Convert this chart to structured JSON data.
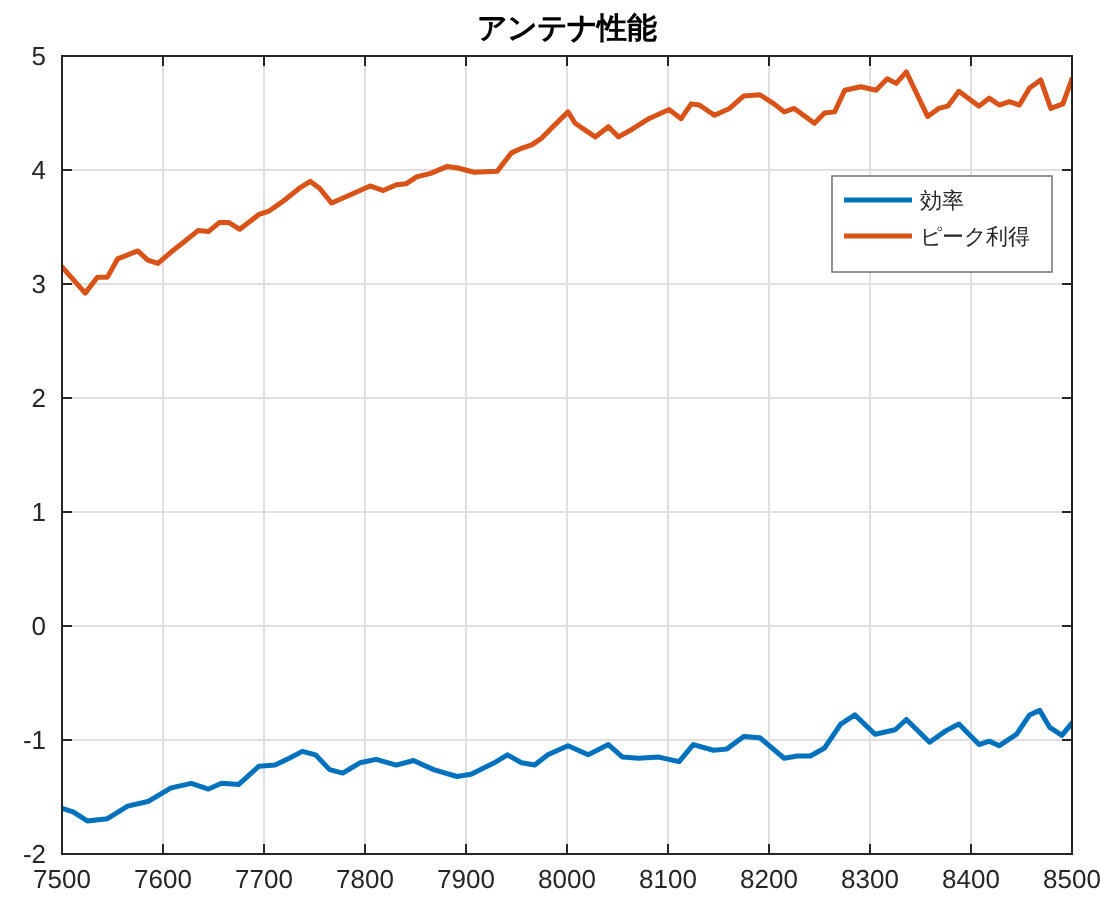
{
  "chart_data": {
    "type": "line",
    "title": "アンテナ性能",
    "xlim": [
      7500,
      8500
    ],
    "xticks": [
      7500,
      7600,
      7700,
      7800,
      7900,
      8000,
      8100,
      8200,
      8300,
      8400,
      8500
    ],
    "ylim": [
      -2,
      5
    ],
    "yticks": [
      -2,
      -1,
      0,
      1,
      2,
      3,
      4,
      5
    ],
    "grid": true,
    "legend": "right",
    "line_style": "solid",
    "marker": "none",
    "series": [
      {
        "name": "効率",
        "color": "#0072bd",
        "x": [
          7500,
          7511,
          7525,
          7545,
          7565,
          7585,
          7608,
          7628,
          7645,
          7658,
          7675,
          7695,
          7711,
          7725,
          7738,
          7751,
          7765,
          7778,
          7795,
          7811,
          7831,
          7848,
          7868,
          7891,
          7905,
          7928,
          7941,
          7955,
          7968,
          7981,
          8001,
          8021,
          8041,
          8055,
          8071,
          8091,
          8111,
          8125,
          8145,
          8158,
          8175,
          8191,
          8215,
          8228,
          8241,
          8255,
          8271,
          8285,
          8305,
          8325,
          8336,
          8359,
          8375,
          8388,
          8408,
          8418,
          8428,
          8445,
          8458,
          8468,
          8478,
          8490,
          8500
        ],
        "values": [
          -1.6,
          -1.63,
          -1.71,
          -1.69,
          -1.58,
          -1.54,
          -1.42,
          -1.38,
          -1.43,
          -1.38,
          -1.39,
          -1.23,
          -1.22,
          -1.16,
          -1.1,
          -1.13,
          -1.26,
          -1.29,
          -1.2,
          -1.17,
          -1.22,
          -1.18,
          -1.26,
          -1.32,
          -1.3,
          -1.2,
          -1.13,
          -1.2,
          -1.22,
          -1.13,
          -1.05,
          -1.13,
          -1.04,
          -1.15,
          -1.16,
          -1.15,
          -1.19,
          -1.04,
          -1.09,
          -1.08,
          -0.97,
          -0.98,
          -1.16,
          -1.14,
          -1.14,
          -1.07,
          -0.86,
          -0.78,
          -0.95,
          -0.91,
          -0.82,
          -1.02,
          -0.92,
          -0.86,
          -1.04,
          -1.01,
          -1.05,
          -0.95,
          -0.78,
          -0.74,
          -0.89,
          -0.96,
          -0.85
        ]
      },
      {
        "name": "ピーク利得",
        "color": "#d95319",
        "x": [
          7500,
          7523,
          7535,
          7545,
          7555,
          7575,
          7585,
          7595,
          7608,
          7621,
          7635,
          7645,
          7656,
          7665,
          7676,
          7695,
          7705,
          7718,
          7735,
          7746,
          7755,
          7767,
          7785,
          7805,
          7818,
          7831,
          7841,
          7851,
          7865,
          7881,
          7891,
          7908,
          7931,
          7945,
          7955,
          7965,
          7975,
          7985,
          8001,
          8008,
          8018,
          8028,
          8041,
          8051,
          8065,
          8081,
          8101,
          8113,
          8123,
          8131,
          8146,
          8161,
          8175,
          8191,
          8205,
          8215,
          8225,
          8245,
          8255,
          8265,
          8275,
          8291,
          8306,
          8317,
          8326,
          8336,
          8357,
          8368,
          8377,
          8388,
          8408,
          8418,
          8428,
          8438,
          8448,
          8458,
          8469,
          8479,
          8491,
          8500
        ],
        "values": [
          3.15,
          2.92,
          3.06,
          3.06,
          3.22,
          3.29,
          3.21,
          3.18,
          3.28,
          3.37,
          3.47,
          3.46,
          3.54,
          3.54,
          3.48,
          3.61,
          3.64,
          3.72,
          3.84,
          3.9,
          3.84,
          3.71,
          3.78,
          3.86,
          3.82,
          3.87,
          3.88,
          3.94,
          3.97,
          4.03,
          4.02,
          3.98,
          3.99,
          4.15,
          4.19,
          4.22,
          4.28,
          4.37,
          4.51,
          4.41,
          4.35,
          4.29,
          4.38,
          4.29,
          4.36,
          4.45,
          4.53,
          4.45,
          4.58,
          4.57,
          4.48,
          4.54,
          4.65,
          4.66,
          4.58,
          4.51,
          4.54,
          4.41,
          4.5,
          4.51,
          4.7,
          4.73,
          4.7,
          4.8,
          4.76,
          4.86,
          4.47,
          4.54,
          4.56,
          4.69,
          4.56,
          4.63,
          4.57,
          4.6,
          4.57,
          4.72,
          4.79,
          4.54,
          4.58,
          4.8
        ]
      }
    ]
  }
}
